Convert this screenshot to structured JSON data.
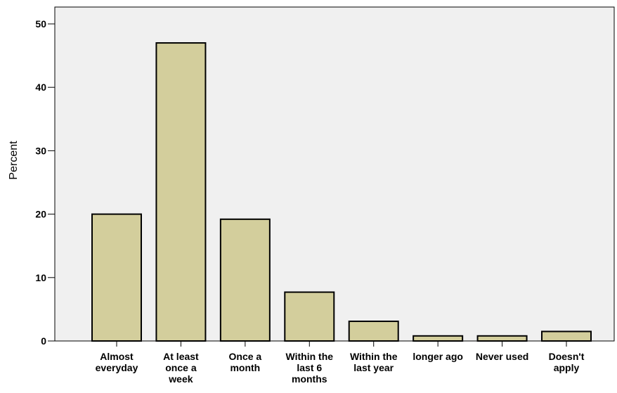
{
  "chart_data": {
    "type": "bar",
    "title": "",
    "xlabel": "",
    "ylabel": "Percent",
    "ylim": [
      0,
      53
    ],
    "yticks": [
      0,
      10,
      20,
      30,
      40,
      50
    ],
    "grid": false,
    "categories": [
      [
        "Almost",
        "everyday"
      ],
      [
        "At least",
        "once a",
        "week"
      ],
      [
        "Once a",
        "month"
      ],
      [
        "Within the",
        "last 6",
        "months"
      ],
      [
        "Within the",
        "last year"
      ],
      [
        "longer ago"
      ],
      [
        "Never used"
      ],
      [
        "Doesn't",
        "apply"
      ]
    ],
    "values": [
      20.0,
      47.0,
      19.2,
      7.7,
      3.1,
      0.8,
      0.8,
      1.5
    ],
    "colors": {
      "bar_fill": "#d3ce9c",
      "bar_stroke": "#000000",
      "plot_background": "#f0f0f0"
    }
  }
}
